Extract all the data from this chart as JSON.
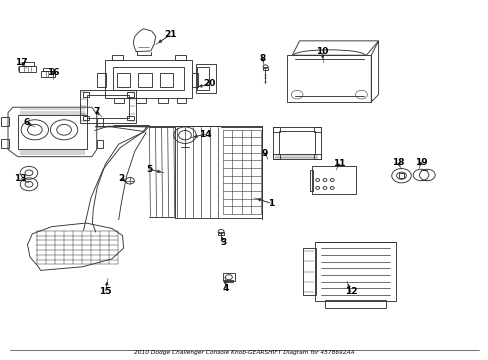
{
  "title": "2010 Dodge Challenger Console Knob-GEARSHIFT Diagram for 4578692AA",
  "background_color": "#ffffff",
  "line_color": "#333333",
  "text_color": "#000000",
  "fig_width": 4.89,
  "fig_height": 3.6,
  "dpi": 100,
  "label_positions": {
    "1": [
      0.555,
      0.435,
      0.52,
      0.45
    ],
    "2": [
      0.248,
      0.505,
      0.26,
      0.49
    ],
    "3": [
      0.456,
      0.325,
      0.452,
      0.35
    ],
    "4": [
      0.462,
      0.198,
      0.46,
      0.23
    ],
    "5": [
      0.305,
      0.53,
      0.335,
      0.52
    ],
    "6": [
      0.053,
      0.66,
      0.07,
      0.648
    ],
    "7": [
      0.196,
      0.69,
      0.208,
      0.676
    ],
    "8": [
      0.537,
      0.84,
      0.54,
      0.82
    ],
    "9": [
      0.542,
      0.575,
      0.548,
      0.558
    ],
    "10": [
      0.66,
      0.858,
      0.66,
      0.83
    ],
    "11": [
      0.695,
      0.545,
      0.688,
      0.528
    ],
    "12": [
      0.718,
      0.188,
      0.71,
      0.218
    ],
    "13": [
      0.041,
      0.505,
      0.058,
      0.492
    ],
    "14": [
      0.42,
      0.628,
      0.39,
      0.618
    ],
    "15": [
      0.215,
      0.19,
      0.22,
      0.225
    ],
    "16": [
      0.108,
      0.8,
      0.108,
      0.782
    ],
    "17": [
      0.043,
      0.828,
      0.053,
      0.812
    ],
    "18": [
      0.815,
      0.548,
      0.822,
      0.53
    ],
    "19": [
      0.862,
      0.548,
      0.858,
      0.532
    ],
    "20": [
      0.428,
      0.768,
      0.4,
      0.758
    ],
    "21": [
      0.348,
      0.905,
      0.318,
      0.878
    ]
  }
}
